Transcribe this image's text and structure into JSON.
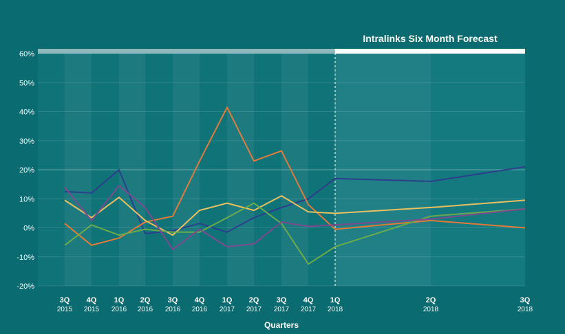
{
  "chart_data": {
    "type": "line",
    "title": "Intralinks Six Month Forecast",
    "xlabel": "Quarters",
    "ylabel": "",
    "ylim": [
      -20,
      60
    ],
    "yticks": [
      -20,
      -10,
      0,
      10,
      20,
      30,
      40,
      50,
      60
    ],
    "ytick_labels": [
      "-20%",
      "-10%",
      "0%",
      "10%",
      "20%",
      "30%",
      "40%",
      "50%",
      "60%"
    ],
    "categories": [
      {
        "q": "3Q",
        "year": "2015"
      },
      {
        "q": "4Q",
        "year": "2015"
      },
      {
        "q": "1Q",
        "year": "2016"
      },
      {
        "q": "2Q",
        "year": "2016"
      },
      {
        "q": "3Q",
        "year": "2016"
      },
      {
        "q": "4Q",
        "year": "2016"
      },
      {
        "q": "1Q",
        "year": "2017"
      },
      {
        "q": "2Q",
        "year": "2017"
      },
      {
        "q": "3Q",
        "year": "2017"
      },
      {
        "q": "4Q",
        "year": "2017"
      },
      {
        "q": "1Q",
        "year": "2018"
      },
      {
        "q": "2Q",
        "year": "2018"
      },
      {
        "q": "3Q",
        "year": "2018"
      }
    ],
    "forecast_start_index": 10,
    "series": [
      {
        "color": "#2b3f8c",
        "values": [
          12.5,
          12,
          20,
          -2,
          -1,
          1.5,
          -1.5,
          3.5,
          7,
          10,
          17,
          16,
          21
        ]
      },
      {
        "color": "#e07b39",
        "values": [
          1.5,
          -6,
          -3.5,
          2,
          4,
          23,
          41.5,
          23,
          26.5,
          8,
          -0.5,
          2.5,
          0
        ]
      },
      {
        "color": "#e8c060",
        "values": [
          9.5,
          3.5,
          10.5,
          2.5,
          -2.5,
          6,
          8.5,
          6,
          11,
          5.5,
          5,
          7,
          9.5
        ]
      },
      {
        "color": "#6aab4c",
        "values": [
          -6,
          1,
          -2.5,
          -0.5,
          -1.5,
          -1.5,
          3.5,
          8.5,
          1.5,
          -12.5,
          -6.5,
          4,
          6.5
        ]
      },
      {
        "color": "#7c4a8f",
        "values": [
          14,
          2.5,
          14.5,
          7,
          -7.5,
          -0.5,
          -6.5,
          -5.5,
          2,
          0.5,
          1,
          3,
          6.5
        ]
      }
    ]
  }
}
